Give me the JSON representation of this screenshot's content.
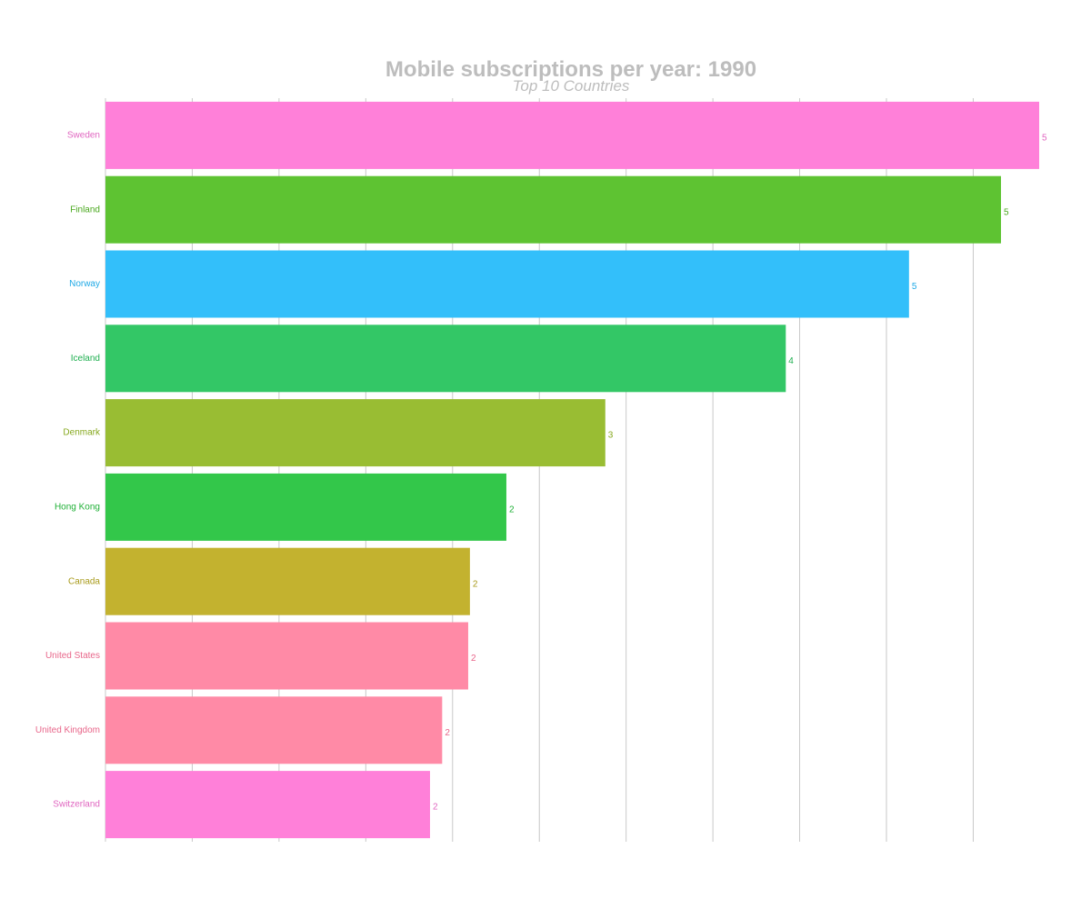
{
  "title": "Mobile subscriptions per year: 1990",
  "subtitle": "Top 10 Countries",
  "chart_data": {
    "type": "bar",
    "orientation": "horizontal",
    "title": "Mobile subscriptions per year: 1990",
    "subtitle": "Top 10 Countries",
    "xlabel": "",
    "ylabel": "",
    "grid": true,
    "xlim": [
      0,
      5.38
    ],
    "categories": [
      "Sweden",
      "Finland",
      "Norway",
      "Iceland",
      "Denmark",
      "Hong Kong",
      "Canada",
      "United States",
      "United Kingdom",
      "Switzerland"
    ],
    "values": [
      5.38,
      5.16,
      4.63,
      3.92,
      2.88,
      2.31,
      2.1,
      2.09,
      1.94,
      1.87
    ],
    "value_labels": [
      "5",
      "5",
      "5",
      "4",
      "3",
      "2",
      "2",
      "2",
      "2",
      "2"
    ],
    "colors": [
      "#FF80D9",
      "#5EC332",
      "#33BFFA",
      "#33C766",
      "#99BD33",
      "#33C74A",
      "#C3B22F",
      "#FF8AA6",
      "#FF8AA6",
      "#FF80D9"
    ],
    "label_colors": [
      "#E066C0",
      "#4AA81E",
      "#1FA9E6",
      "#1FAF50",
      "#86A81E",
      "#1FB036",
      "#A89A1A",
      "#E8668A",
      "#E8668A",
      "#E066C0"
    ]
  }
}
